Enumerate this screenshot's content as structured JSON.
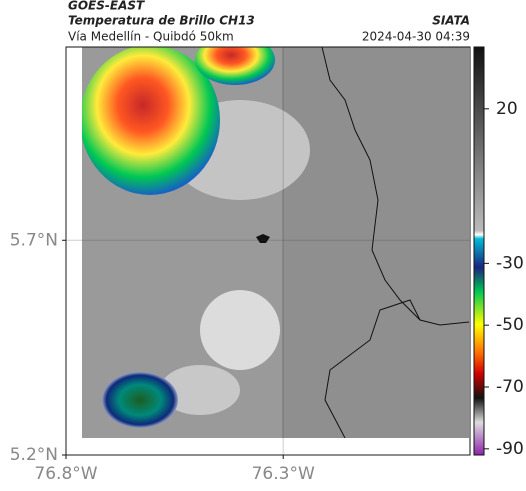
{
  "header": {
    "product": "GOES-EAST",
    "title": "Temperatura de Brillo CH13",
    "source": "SIATA",
    "subtitle": "Vía Medellín - Quibdó 50km",
    "timestamp": "2024-04-30 04:39"
  },
  "map": {
    "xlim": [
      -76.8,
      -75.87
    ],
    "ylim": [
      5.2,
      6.15
    ],
    "xticks": [
      {
        "value": -76.8,
        "label": "76.8°W"
      },
      {
        "value": -76.3,
        "label": "76.3°W"
      }
    ],
    "yticks": [
      {
        "value": 5.2,
        "label": "5.2°N"
      },
      {
        "value": 5.7,
        "label": "5.7°N"
      }
    ]
  },
  "colorbar": {
    "lim": [
      40,
      -92
    ],
    "ticks": [
      20,
      -30,
      -50,
      -70,
      -90
    ]
  }
}
